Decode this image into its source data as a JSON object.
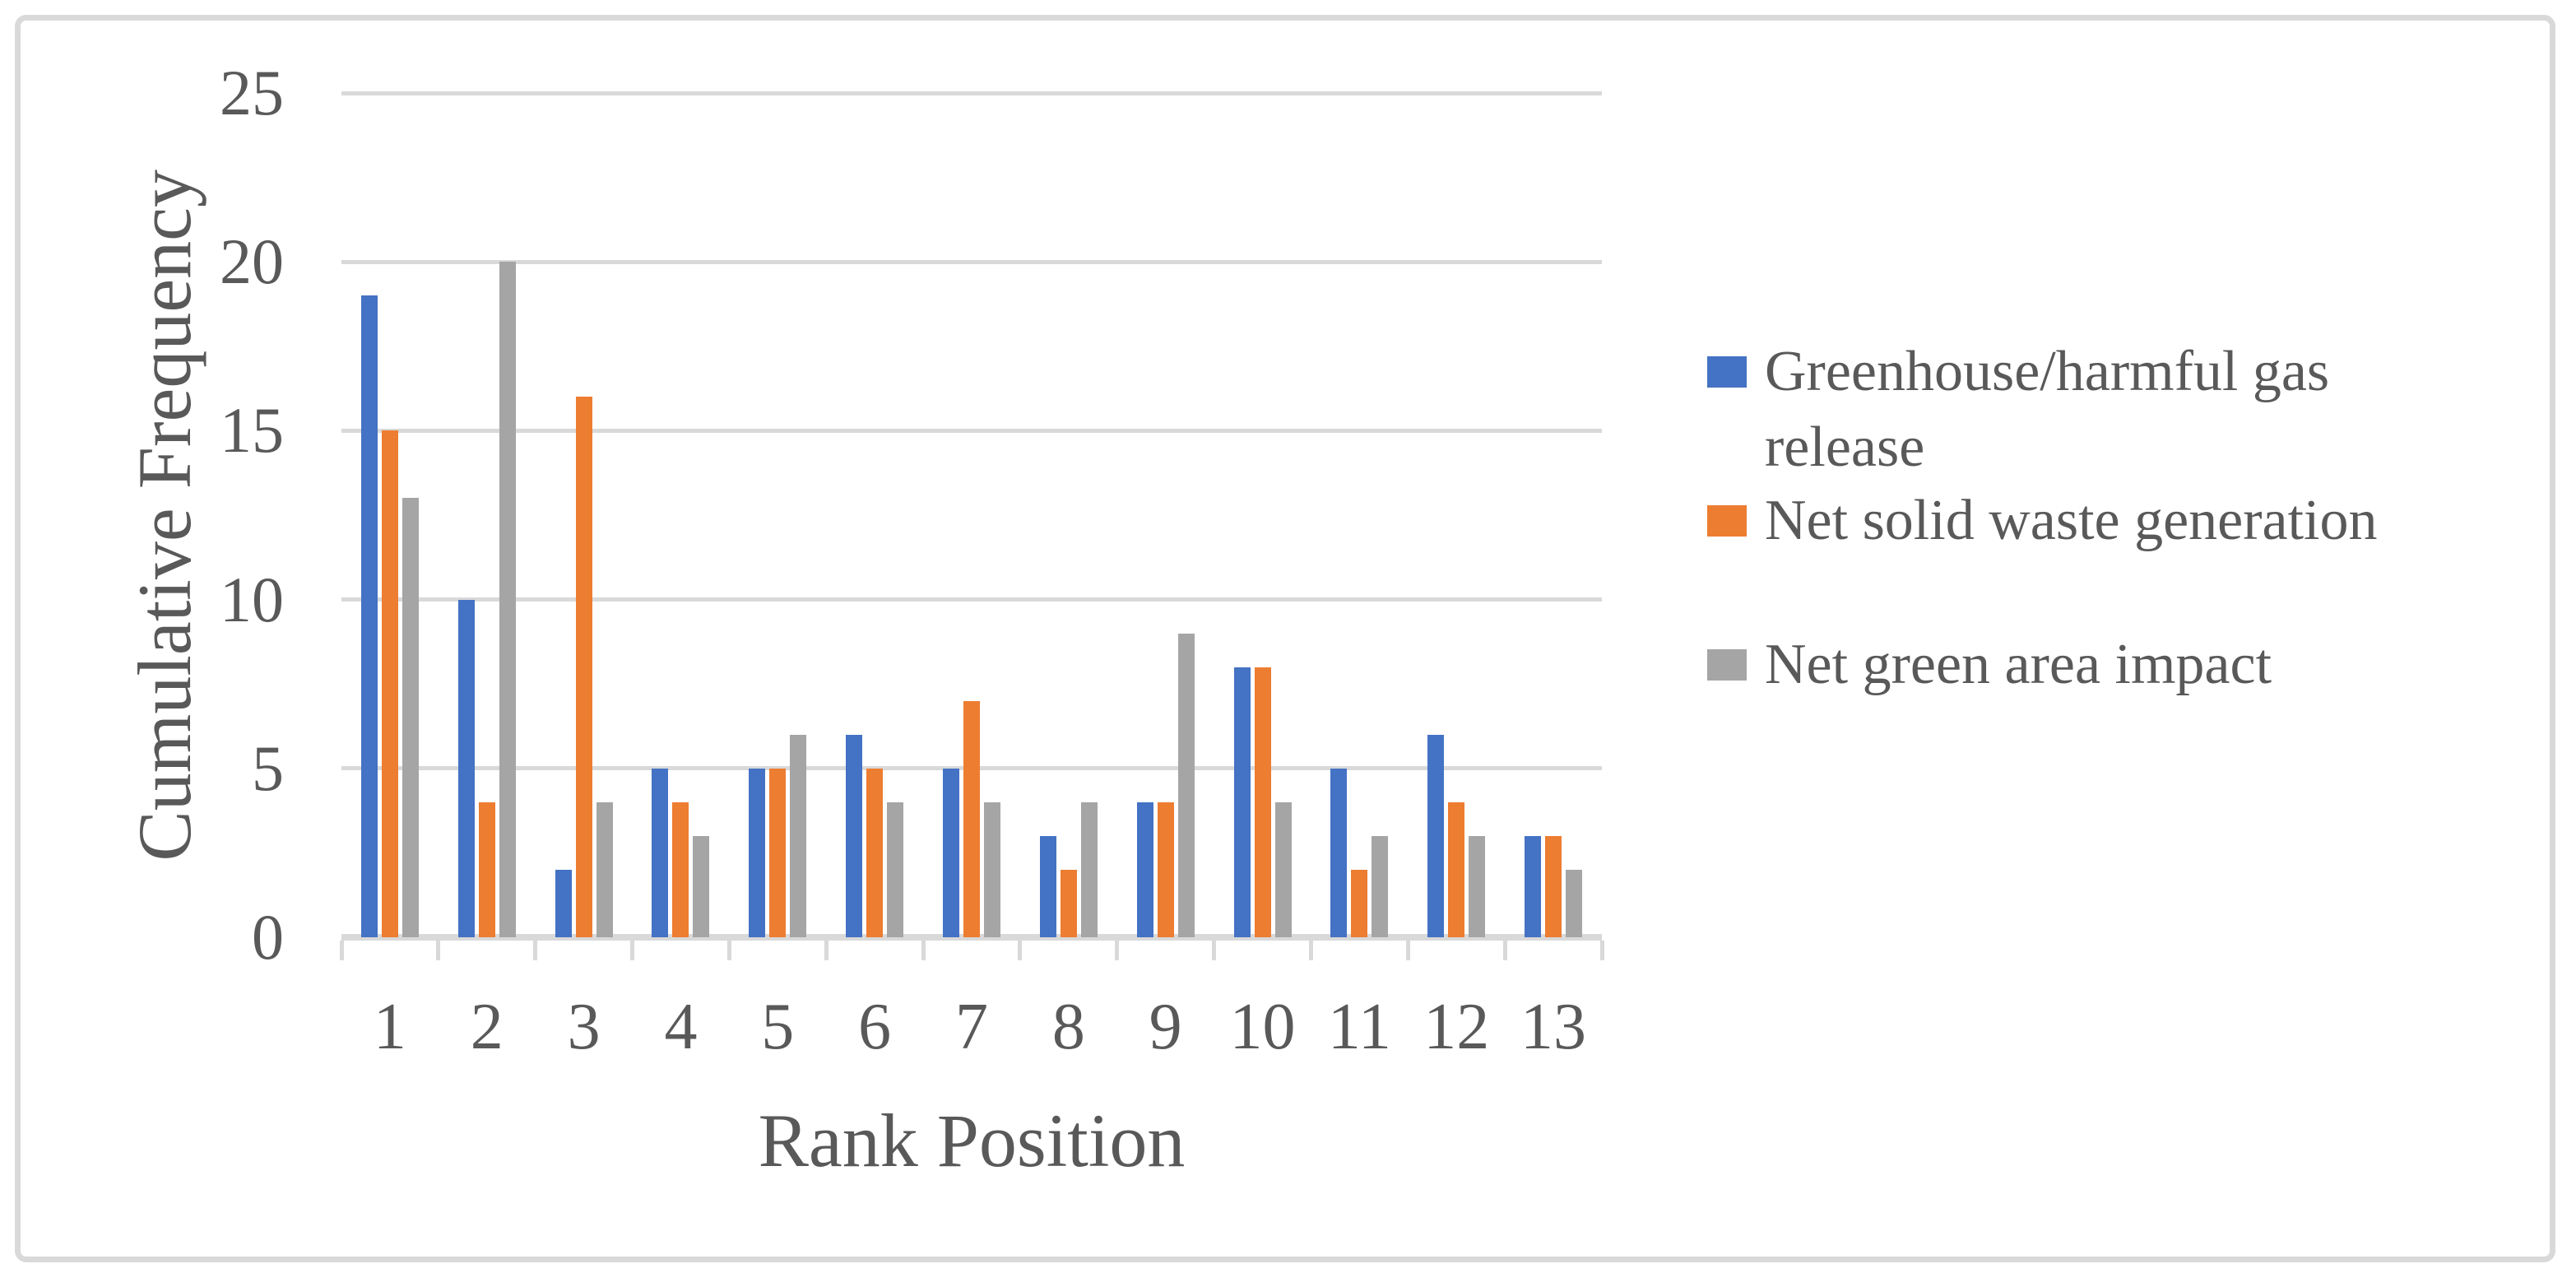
{
  "figure": {
    "background": "#FFFFFF",
    "border_color": "#D9D9D9"
  },
  "chart_data": {
    "type": "bar",
    "title": "",
    "xlabel": "Rank Position",
    "ylabel": "Cumulative Frequency",
    "categories": [
      "1",
      "2",
      "3",
      "4",
      "5",
      "6",
      "7",
      "8",
      "9",
      "10",
      "11",
      "12",
      "13"
    ],
    "series": [
      {
        "name": "Greenhouse/harmful gas release",
        "color": "#4472C4",
        "values": [
          19,
          10,
          2,
          5,
          5,
          6,
          5,
          3,
          4,
          8,
          5,
          6,
          3
        ]
      },
      {
        "name": "Net solid waste generation",
        "color": "#ED7D31",
        "values": [
          15,
          4,
          16,
          4,
          5,
          5,
          7,
          2,
          4,
          8,
          2,
          4,
          3
        ]
      },
      {
        "name": "Net green area impact",
        "color": "#A5A5A5",
        "values": [
          13,
          20,
          4,
          3,
          6,
          4,
          4,
          4,
          9,
          4,
          3,
          3,
          2
        ]
      }
    ],
    "ylim": [
      0,
      25
    ],
    "yticks": [
      0,
      5,
      10,
      15,
      20,
      25
    ],
    "grid": true,
    "legend_position": "right",
    "text_color": "#595959",
    "axis_color": "#D9D9D9"
  },
  "legend": {
    "items": [
      {
        "lines": [
          "Greenhouse/harmful gas",
          "release"
        ],
        "color": "#4472C4"
      },
      {
        "lines": [
          "Net solid waste generation"
        ],
        "color": "#ED7D31"
      },
      {
        "lines": [
          "Net green area impact"
        ],
        "color": "#A5A5A5"
      }
    ]
  }
}
